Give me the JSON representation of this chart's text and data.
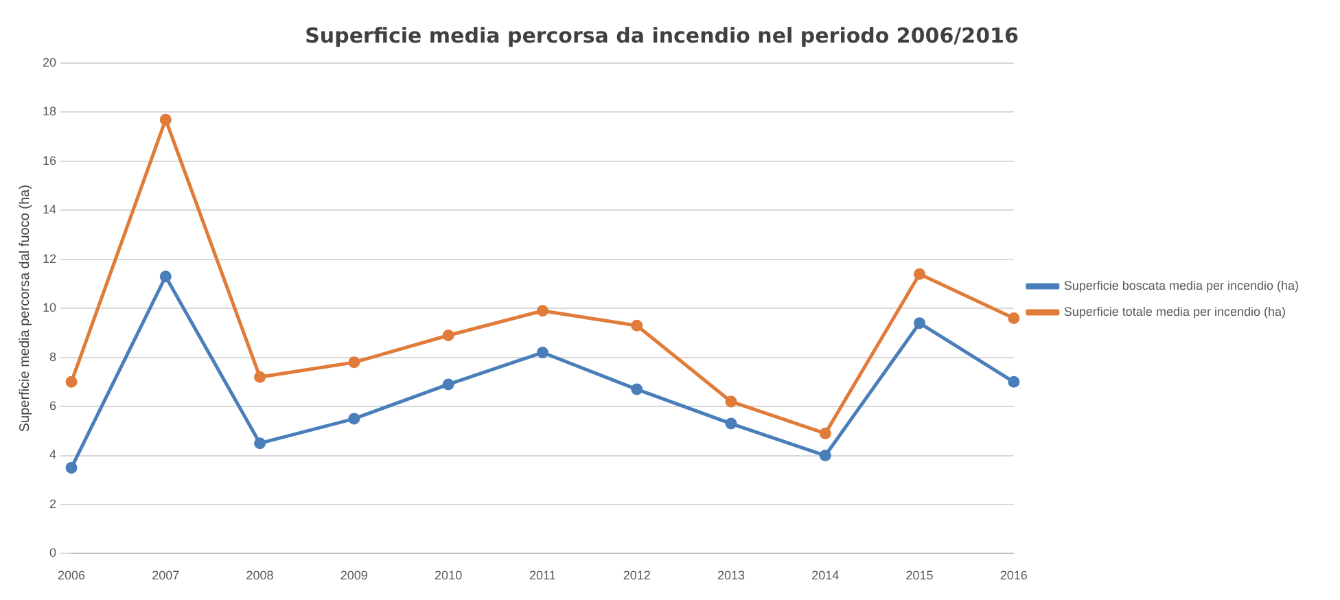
{
  "chart_data": {
    "type": "line",
    "title": "Superficie media percorsa da incendio nel periodo 2006/2016",
    "ylabel": "Superficie media percorsa dal fuoco (ha)",
    "categories": [
      "2006",
      "2007",
      "2008",
      "2009",
      "2010",
      "2011",
      "2012",
      "2013",
      "2014",
      "2015",
      "2016"
    ],
    "series": [
      {
        "name": "Superficie boscata media per incendio (ha)",
        "color": "#4a7ebb",
        "values": [
          3.5,
          11.3,
          4.5,
          5.5,
          6.9,
          8.2,
          6.7,
          5.3,
          4.0,
          9.4,
          7.0
        ]
      },
      {
        "name": "Superficie totale media per incendio (ha)",
        "color": "#e07b39",
        "values": [
          7.0,
          17.7,
          7.2,
          7.8,
          8.9,
          9.9,
          9.3,
          6.2,
          4.9,
          11.4,
          9.6
        ]
      }
    ],
    "ylim": [
      0,
      20
    ],
    "yticks": [
      0,
      2,
      4,
      6,
      8,
      10,
      12,
      14,
      16,
      18,
      20
    ],
    "grid": "y",
    "legend": "right",
    "marker": "circle",
    "line_style": "solid"
  }
}
